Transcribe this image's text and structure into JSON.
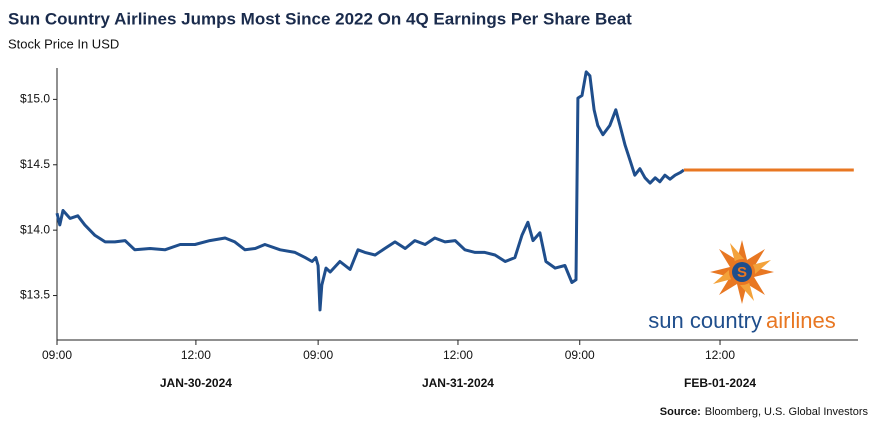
{
  "chart_data": {
    "type": "line",
    "title": "Sun Country Airlines Jumps Most Since 2022 On 4Q Earnings Per Share Beat",
    "subtitle": "Stock Price In USD",
    "series": [
      {
        "color": "#1f4e8c",
        "x": [
          0,
          0.06,
          0.13,
          0.28,
          0.45,
          0.6,
          0.82,
          1.04,
          1.25,
          1.47,
          1.68,
          2.01,
          2.33,
          2.66,
          2.98,
          3.3,
          3.63,
          3.84,
          4.06,
          4.28,
          4.49,
          4.82,
          5.14,
          5.36,
          5.51,
          5.59,
          5.64,
          5.68,
          5.72,
          5.81,
          5.9,
          6.11,
          6.33,
          6.5,
          6.65,
          6.87,
          7.08,
          7.3,
          7.52,
          7.73,
          7.95,
          8.16,
          8.38,
          8.6,
          8.81,
          9.03,
          9.24,
          9.46,
          9.68,
          9.89,
          10.04,
          10.17,
          10.28,
          10.43,
          10.56,
          10.76,
          10.97,
          11.12,
          11.21,
          11.25,
          11.34,
          11.43,
          11.51,
          11.6,
          11.68,
          11.79,
          11.94,
          12.07,
          12.16,
          12.27,
          12.38,
          12.48,
          12.59,
          12.7,
          12.81,
          12.92,
          13.02,
          13.13,
          13.24,
          13.35,
          13.46,
          13.54
        ],
        "values": [
          14.13,
          14.04,
          14.15,
          14.09,
          14.11,
          14.04,
          13.96,
          13.91,
          13.91,
          13.92,
          13.85,
          13.86,
          13.85,
          13.89,
          13.89,
          13.92,
          13.94,
          13.91,
          13.85,
          13.86,
          13.89,
          13.85,
          13.83,
          13.79,
          13.76,
          13.79,
          13.73,
          13.39,
          13.58,
          13.71,
          13.68,
          13.76,
          13.7,
          13.85,
          13.83,
          13.81,
          13.86,
          13.91,
          13.86,
          13.92,
          13.89,
          13.94,
          13.91,
          13.92,
          13.85,
          13.83,
          13.83,
          13.81,
          13.76,
          13.79,
          13.96,
          14.06,
          13.92,
          13.98,
          13.76,
          13.71,
          13.73,
          13.6,
          13.62,
          15.01,
          15.03,
          15.21,
          15.18,
          14.92,
          14.8,
          14.73,
          14.8,
          14.92,
          14.8,
          14.65,
          14.53,
          14.42,
          14.47,
          14.4,
          14.36,
          14.4,
          14.37,
          14.42,
          14.39,
          14.42,
          14.44,
          14.46
        ]
      },
      {
        "color": "#e87722",
        "x": [
          13.54,
          17.21
        ],
        "values": [
          14.46,
          14.46
        ]
      }
    ],
    "xlim": [
      0,
      17.3
    ],
    "xticks": [
      {
        "value": 0,
        "label": "09:00"
      },
      {
        "value": 3.0,
        "label": "12:00"
      },
      {
        "value": 5.64,
        "label": "09:00"
      },
      {
        "value": 8.66,
        "label": "12:00"
      },
      {
        "value": 11.29,
        "label": "09:00"
      },
      {
        "value": 14.32,
        "label": "12:00"
      }
    ],
    "x_date_labels": [
      "JAN-30-2024",
      "JAN-31-2024",
      "FEB-01-2024"
    ],
    "ylim": [
      13.16,
      15.24
    ],
    "yticks": [
      {
        "value": 13.5,
        "label": "$13.5"
      },
      {
        "value": 14.0,
        "label": "$14.0"
      },
      {
        "value": 14.5,
        "label": "$14.5"
      },
      {
        "value": 15.0,
        "label": "$15.0"
      }
    ],
    "grid": false,
    "logo": {
      "word1": "sun country",
      "word2": "airlines"
    },
    "source_label": "Source:",
    "source": "Bloomberg, U.S. Global Investors"
  }
}
